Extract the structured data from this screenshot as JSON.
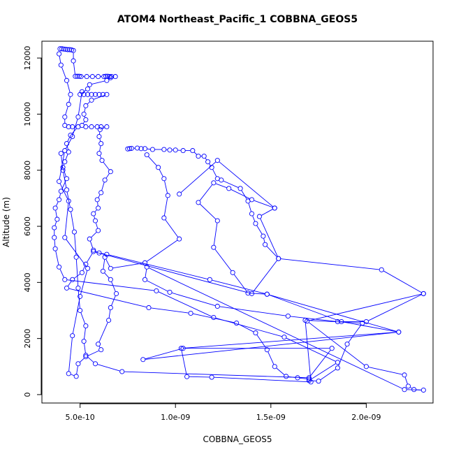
{
  "chart_data": {
    "type": "scatter",
    "title": "ATOM4 Northeast_Pacific_1 COBBNA_GEOS5",
    "xlabel": "COBBNA_GEOS5",
    "ylabel": "Altitude (m)",
    "xlim": [
      3e-10,
      2.35e-09
    ],
    "ylim": [
      -300,
      12600
    ],
    "x_ticks": [
      5e-10,
      1e-09,
      1.5e-09,
      2e-09
    ],
    "x_tick_labels": [
      "5.0e-10",
      "1.0e-09",
      "1.5e-09",
      "2.0e-09"
    ],
    "y_ticks": [
      0,
      2000,
      4000,
      6000,
      8000,
      10000,
      12000
    ],
    "y_tick_labels": [
      "0",
      "2000",
      "4000",
      "6000",
      "8000",
      "10000",
      "12000"
    ],
    "grid": false,
    "series": [
      {
        "values": [
          [
            3.95e-10,
            12330
          ],
          [
            4.05e-10,
            12330
          ],
          [
            4.15e-10,
            12320
          ],
          [
            4.25e-10,
            12310
          ],
          [
            4.35e-10,
            12300
          ],
          [
            4.45e-10,
            12300
          ],
          [
            4.55e-10,
            12290
          ],
          [
            4.65e-10,
            12270
          ],
          [
            4.65e-10,
            11900
          ],
          [
            4.75e-10,
            11350
          ],
          [
            4.85e-10,
            11350
          ],
          [
            4.95e-10,
            11350
          ],
          [
            5.05e-10,
            11340
          ],
          [
            5.35e-10,
            11340
          ],
          [
            5.65e-10,
            11340
          ],
          [
            5.95e-10,
            11340
          ],
          [
            6.25e-10,
            11340
          ],
          [
            6.35e-10,
            11350
          ],
          [
            6.45e-10,
            11350
          ],
          [
            6.55e-10,
            11340
          ],
          [
            6.65e-10,
            11340
          ],
          [
            6.85e-10,
            11340
          ],
          [
            6.6e-10,
            11300
          ],
          [
            6.4e-10,
            11200
          ],
          [
            5.5e-10,
            11050
          ],
          [
            5.4e-10,
            10900
          ],
          [
            5e-10,
            10700
          ],
          [
            5.2e-10,
            10700
          ],
          [
            5.4e-10,
            10700
          ],
          [
            5.6e-10,
            10700
          ],
          [
            5.8e-10,
            10700
          ],
          [
            6e-10,
            10700
          ],
          [
            6.2e-10,
            10700
          ],
          [
            6.4e-10,
            10700
          ],
          [
            5.6e-10,
            10500
          ],
          [
            5.3e-10,
            10300
          ],
          [
            5.2e-10,
            10000
          ],
          [
            5.3e-10,
            9800
          ],
          [
            5.1e-10,
            9600
          ],
          [
            5.3e-10,
            9550
          ],
          [
            5.6e-10,
            9550
          ],
          [
            5.9e-10,
            9550
          ],
          [
            6.1e-10,
            9550
          ],
          [
            6.4e-10,
            9550
          ],
          [
            6.05e-10,
            9450
          ],
          [
            6e-10,
            9200
          ],
          [
            6.1e-10,
            8950
          ],
          [
            6e-10,
            8600
          ],
          [
            6.15e-10,
            8350
          ],
          [
            6.6e-10,
            7950
          ],
          [
            6.3e-10,
            7650
          ],
          [
            6.1e-10,
            7200
          ],
          [
            5.9e-10,
            6950
          ],
          [
            5.95e-10,
            6650
          ],
          [
            5.7e-10,
            6450
          ],
          [
            5.8e-10,
            6200
          ],
          [
            5.95e-10,
            5850
          ],
          [
            5.5e-10,
            5550
          ],
          [
            5.7e-10,
            5150
          ],
          [
            6e-10,
            5050
          ],
          [
            6.4e-10,
            5000
          ],
          [
            1.18e-09,
            4100
          ],
          [
            1.48e-09,
            3580
          ],
          [
            1.87e-09,
            2600
          ],
          [
            2.17e-09,
            2230
          ],
          [
            8.3e-10,
            1250
          ],
          [
            1.04e-09,
            1650
          ],
          [
            1.82e-09,
            1650
          ],
          [
            1.7e-09,
            600
          ],
          [
            7.2e-10,
            820
          ],
          [
            5.8e-10,
            1100
          ],
          [
            5.3e-10,
            1400
          ],
          [
            5.2e-10,
            1900
          ],
          [
            5.3e-10,
            2450
          ],
          [
            5e-10,
            3000
          ],
          [
            4.9e-10,
            3800
          ],
          [
            4.8e-10,
            4900
          ],
          [
            4.7e-10,
            5800
          ],
          [
            4.5e-10,
            6600
          ],
          [
            4.3e-10,
            7300
          ],
          [
            4.1e-10,
            8000
          ],
          [
            4e-10,
            8600
          ]
        ]
      },
      {
        "values": [
          [
            3.9e-10,
            12150
          ],
          [
            4e-10,
            11750
          ],
          [
            4.3e-10,
            11200
          ],
          [
            4.5e-10,
            10700
          ],
          [
            4.4e-10,
            10350
          ],
          [
            4.2e-10,
            9900
          ],
          [
            4.2e-10,
            9600
          ],
          [
            4.4e-10,
            9550
          ],
          [
            4.6e-10,
            9550
          ],
          [
            4.9e-10,
            9550
          ],
          [
            4.5e-10,
            9250
          ],
          [
            4.3e-10,
            8950
          ],
          [
            4.4e-10,
            8650
          ],
          [
            4.2e-10,
            8300
          ],
          [
            4.1e-10,
            8100
          ],
          [
            4.3e-10,
            7700
          ],
          [
            4e-10,
            7250
          ],
          [
            3.9e-10,
            6950
          ],
          [
            3.7e-10,
            6650
          ],
          [
            3.8e-10,
            6250
          ],
          [
            3.65e-10,
            5950
          ],
          [
            3.65e-10,
            5600
          ],
          [
            3.7e-10,
            5200
          ],
          [
            3.9e-10,
            4550
          ],
          [
            4.2e-10,
            4100
          ],
          [
            9e-10,
            3700
          ],
          [
            1.2e-09,
            2750
          ],
          [
            1.57e-09,
            2050
          ],
          [
            1.85e-09,
            1150
          ],
          [
            1.7e-09,
            500
          ],
          [
            1.75e-09,
            480
          ],
          [
            1.85e-09,
            950
          ],
          [
            1.9e-09,
            1800
          ],
          [
            1.98e-09,
            2550
          ],
          [
            1.68e-09,
            2650
          ],
          [
            1.71e-09,
            450
          ],
          [
            1.19e-09,
            620
          ],
          [
            1.06e-09,
            640
          ],
          [
            1.03e-09,
            1650
          ],
          [
            2.17e-09,
            2230
          ],
          [
            1.48e-09,
            3580
          ],
          [
            1.38e-09,
            3620
          ],
          [
            1.3e-09,
            4350
          ],
          [
            1.2e-09,
            5250
          ],
          [
            1.22e-09,
            6200
          ],
          [
            1.12e-09,
            6850
          ],
          [
            1.2e-09,
            7550
          ],
          [
            1.28e-09,
            7350
          ],
          [
            1.4e-09,
            6950
          ],
          [
            1.52e-09,
            6650
          ]
        ]
      },
      {
        "values": [
          [
            7.5e-10,
            8760
          ],
          [
            7.6e-10,
            8770
          ],
          [
            7.7e-10,
            8780
          ],
          [
            8e-10,
            8790
          ],
          [
            8.2e-10,
            8770
          ],
          [
            8.4e-10,
            8770
          ],
          [
            8.8e-10,
            8740
          ],
          [
            9.4e-10,
            8740
          ],
          [
            9.7e-10,
            8720
          ],
          [
            1e-09,
            8720
          ],
          [
            1.04e-09,
            8700
          ],
          [
            1.09e-09,
            8700
          ],
          [
            1.12e-09,
            8500
          ],
          [
            1.15e-09,
            8500
          ],
          [
            1.17e-09,
            8300
          ],
          [
            1.19e-09,
            8100
          ],
          [
            1.22e-09,
            7700
          ],
          [
            1.24e-09,
            7650
          ],
          [
            1.34e-09,
            7350
          ],
          [
            1.38e-09,
            6900
          ],
          [
            1.4e-09,
            6450
          ],
          [
            1.42e-09,
            6100
          ],
          [
            1.46e-09,
            5650
          ],
          [
            1.47e-09,
            5350
          ],
          [
            1.54e-09,
            4850
          ],
          [
            2.08e-09,
            4450
          ],
          [
            2.3e-09,
            3600
          ],
          [
            1.69e-09,
            2620
          ],
          [
            2e-09,
            1000
          ],
          [
            2.2e-09,
            700
          ],
          [
            2.22e-09,
            300
          ],
          [
            2.25e-09,
            180
          ],
          [
            2.3e-09,
            160
          ],
          [
            2.2e-09,
            180
          ],
          [
            8.5e-10,
            4550
          ],
          [
            8.4e-10,
            4100
          ],
          [
            9.7e-10,
            3650
          ],
          [
            1.22e-09,
            3150
          ],
          [
            1.59e-09,
            2800
          ],
          [
            1.85e-09,
            2600
          ],
          [
            2e-09,
            2600
          ],
          [
            2.3e-09,
            3600
          ]
        ]
      },
      {
        "values": [
          [
            8.5e-10,
            8550
          ],
          [
            9.1e-10,
            8100
          ],
          [
            9.4e-10,
            7700
          ],
          [
            9.6e-10,
            7100
          ],
          [
            9.4e-10,
            6300
          ],
          [
            1.02e-09,
            5550
          ],
          [
            8.4e-10,
            4700
          ],
          [
            6.6e-10,
            4500
          ],
          [
            6.3e-10,
            4900
          ],
          [
            6.2e-10,
            4400
          ],
          [
            6.6e-10,
            4100
          ],
          [
            6.9e-10,
            3600
          ],
          [
            6.6e-10,
            3100
          ],
          [
            6.5e-10,
            2650
          ],
          [
            5.95e-10,
            1800
          ],
          [
            6.1e-10,
            1600
          ],
          [
            5.3e-10,
            1350
          ],
          [
            4.9e-10,
            1100
          ],
          [
            4.8e-10,
            650
          ],
          [
            4.4e-10,
            750
          ],
          [
            4.6e-10,
            2100
          ],
          [
            5e-10,
            3500
          ],
          [
            5.4e-10,
            4500
          ],
          [
            4.2e-10,
            5600
          ],
          [
            4.4e-10,
            6900
          ],
          [
            3.9e-10,
            7600
          ],
          [
            4.2e-10,
            8700
          ],
          [
            4.6e-10,
            9200
          ],
          [
            4.9e-10,
            9900
          ],
          [
            5.1e-10,
            10800
          ]
        ]
      },
      {
        "values": [
          [
            1.02e-09,
            7150
          ],
          [
            1.22e-09,
            8350
          ],
          [
            1.52e-09,
            6650
          ],
          [
            1.44e-09,
            6350
          ],
          [
            1.54e-09,
            4850
          ],
          [
            1.4e-09,
            3600
          ],
          [
            5.7e-10,
            5100
          ],
          [
            5.3e-10,
            4650
          ],
          [
            5.1e-10,
            4350
          ],
          [
            4.6e-10,
            4100
          ],
          [
            4.3e-10,
            3800
          ],
          [
            8.6e-10,
            3100
          ],
          [
            1.08e-09,
            2900
          ],
          [
            1.32e-09,
            2550
          ],
          [
            1.42e-09,
            2200
          ],
          [
            1.48e-09,
            1600
          ],
          [
            1.52e-09,
            1000
          ],
          [
            1.58e-09,
            650
          ],
          [
            1.64e-09,
            600
          ],
          [
            1.7e-09,
            550
          ]
        ]
      }
    ]
  }
}
